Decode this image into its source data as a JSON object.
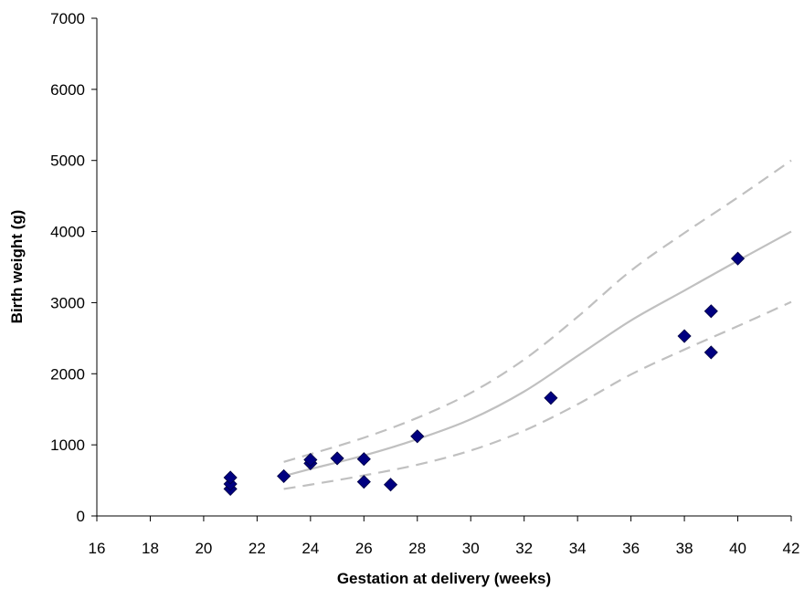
{
  "chart_data": {
    "type": "scatter",
    "title": "",
    "xlabel": "Gestation at delivery (weeks)",
    "ylabel": "Birth weight (g)",
    "xlim": [
      16,
      42
    ],
    "ylim": [
      0,
      7000
    ],
    "x_ticks": [
      16,
      18,
      20,
      22,
      24,
      26,
      28,
      30,
      32,
      34,
      36,
      38,
      40,
      42
    ],
    "y_ticks": [
      0,
      1000,
      2000,
      3000,
      4000,
      5000,
      6000,
      7000
    ],
    "grid": false,
    "legend": "none",
    "series": [
      {
        "kind": "points",
        "marker": "diamond",
        "color": "#000080",
        "points": [
          [
            21,
            380
          ],
          [
            21,
            450
          ],
          [
            21,
            540
          ],
          [
            23,
            560
          ],
          [
            24,
            740
          ],
          [
            24,
            790
          ],
          [
            25,
            810
          ],
          [
            26,
            480
          ],
          [
            26,
            800
          ],
          [
            27,
            440
          ],
          [
            28,
            1120
          ],
          [
            33,
            1660
          ],
          [
            38,
            2530
          ],
          [
            39,
            2300
          ],
          [
            39,
            2880
          ],
          [
            40,
            3620
          ]
        ]
      },
      {
        "kind": "line",
        "style": "solid",
        "color": "#c0c0c0",
        "points": [
          [
            23,
            560
          ],
          [
            24,
            660
          ],
          [
            26,
            850
          ],
          [
            28,
            1080
          ],
          [
            30,
            1360
          ],
          [
            32,
            1750
          ],
          [
            34,
            2250
          ],
          [
            36,
            2750
          ],
          [
            38,
            3170
          ],
          [
            40,
            3590
          ],
          [
            42,
            4000
          ]
        ]
      },
      {
        "kind": "line",
        "style": "dashed",
        "color": "#c0c0c0",
        "points": [
          [
            23,
            760
          ],
          [
            24,
            870
          ],
          [
            26,
            1100
          ],
          [
            28,
            1380
          ],
          [
            30,
            1730
          ],
          [
            32,
            2200
          ],
          [
            34,
            2800
          ],
          [
            36,
            3450
          ],
          [
            38,
            3980
          ],
          [
            40,
            4480
          ],
          [
            42,
            5000
          ]
        ]
      },
      {
        "kind": "line",
        "style": "dashed",
        "color": "#c0c0c0",
        "points": [
          [
            23,
            380
          ],
          [
            24,
            440
          ],
          [
            26,
            570
          ],
          [
            28,
            720
          ],
          [
            30,
            920
          ],
          [
            32,
            1200
          ],
          [
            34,
            1570
          ],
          [
            36,
            1990
          ],
          [
            38,
            2340
          ],
          [
            40,
            2670
          ],
          [
            42,
            3010
          ]
        ]
      }
    ]
  }
}
